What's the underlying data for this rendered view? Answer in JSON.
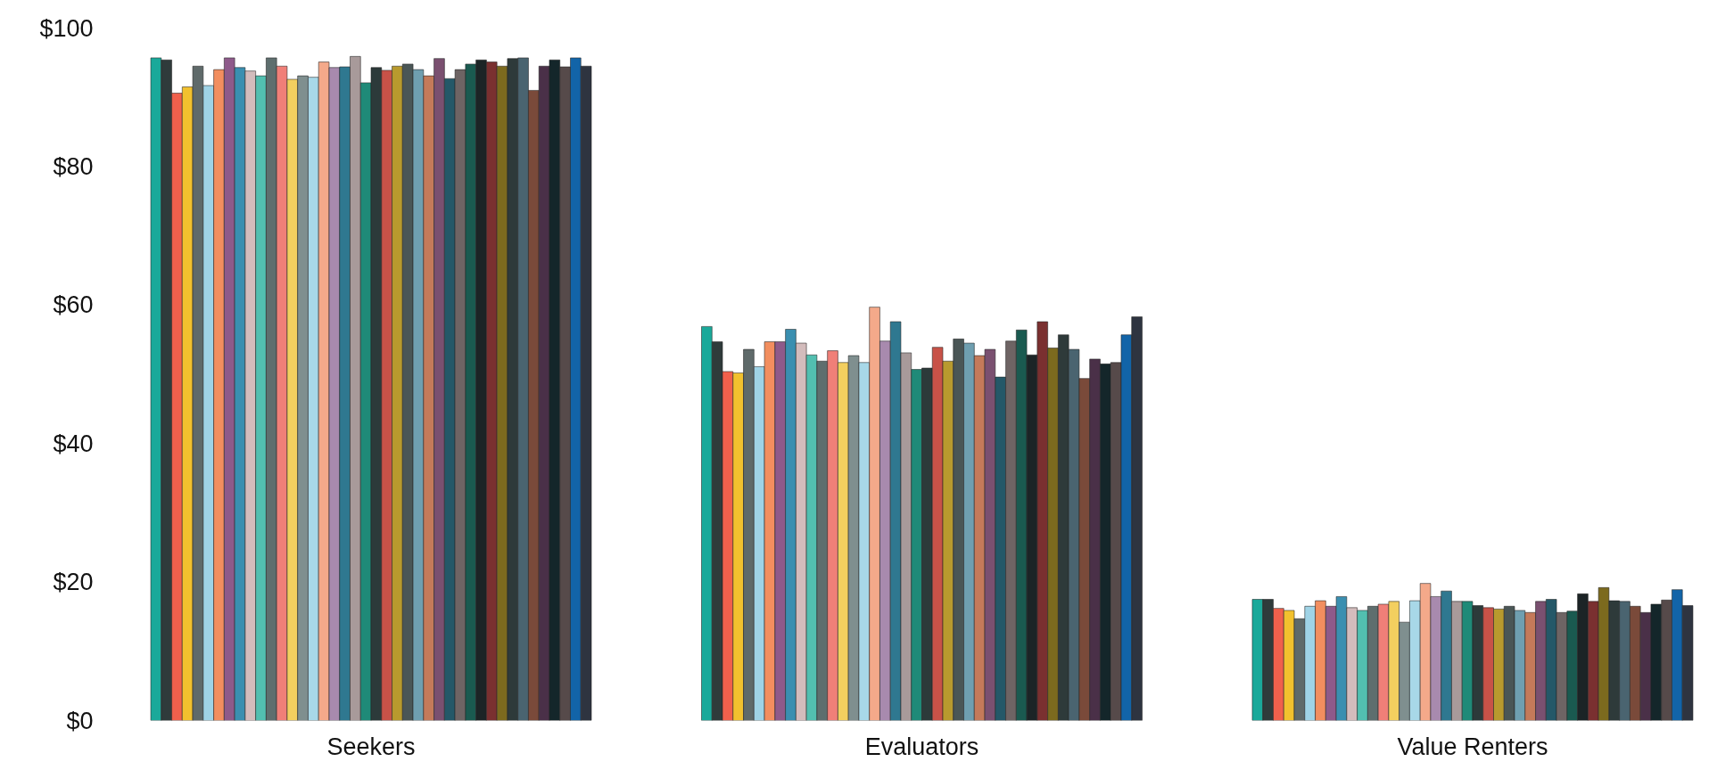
{
  "chart_data": {
    "type": "bar",
    "categories": [
      "Seekers",
      "Evaluators",
      "Value Renters"
    ],
    "ylim": [
      0,
      100
    ],
    "yticks": [
      {
        "value": 0,
        "label": "$0"
      },
      {
        "value": 20,
        "label": "$20"
      },
      {
        "value": 40,
        "label": "$40"
      },
      {
        "value": 60,
        "label": "$60"
      },
      {
        "value": 80,
        "label": "$80"
      },
      {
        "value": 100,
        "label": "$100"
      }
    ],
    "series": [
      {
        "color": "#1aa99a",
        "values": [
          95.7,
          56.9,
          17.5
        ]
      },
      {
        "color": "#2f3b3b",
        "values": [
          95.4,
          54.7,
          17.5
        ]
      },
      {
        "color": "#f0604c",
        "values": [
          90.6,
          50.4,
          16.2
        ]
      },
      {
        "color": "#f2c12e",
        "values": [
          91.5,
          50.2,
          15.9
        ]
      },
      {
        "color": "#5f6a6a",
        "values": [
          94.5,
          53.6,
          14.7
        ]
      },
      {
        "color": "#9fd3e6",
        "values": [
          91.7,
          51.1,
          16.5
        ]
      },
      {
        "color": "#f28e5f",
        "values": [
          94.0,
          54.7,
          17.3
        ]
      },
      {
        "color": "#8e5a8a",
        "values": [
          95.7,
          54.7,
          16.5
        ]
      },
      {
        "color": "#3a8fb0",
        "values": [
          94.3,
          56.5,
          17.9
        ]
      },
      {
        "color": "#d3bcbc",
        "values": [
          93.8,
          54.5,
          16.3
        ]
      },
      {
        "color": "#52bfb0",
        "values": [
          93.1,
          52.8,
          15.9
        ]
      },
      {
        "color": "#5e6e6e",
        "values": [
          95.7,
          51.9,
          16.5
        ]
      },
      {
        "color": "#f07f78",
        "values": [
          94.5,
          53.4,
          16.8
        ]
      },
      {
        "color": "#f3cf5f",
        "values": [
          92.6,
          51.7,
          17.2
        ]
      },
      {
        "color": "#7f8f8f",
        "values": [
          93.1,
          52.7,
          14.2
        ]
      },
      {
        "color": "#a8d8e8",
        "values": [
          92.9,
          51.7,
          17.3
        ]
      },
      {
        "color": "#f4a98a",
        "values": [
          95.1,
          59.7,
          19.8
        ]
      },
      {
        "color": "#a88aae",
        "values": [
          94.3,
          54.8,
          17.9
        ]
      },
      {
        "color": "#2f7890",
        "values": [
          94.4,
          57.6,
          18.7
        ]
      },
      {
        "color": "#a89a9a",
        "values": [
          95.9,
          53.1,
          17.2
        ]
      },
      {
        "color": "#1f8a78",
        "values": [
          92.1,
          50.7,
          17.2
        ]
      },
      {
        "color": "#2c3a3a",
        "values": [
          94.3,
          50.9,
          16.6
        ]
      },
      {
        "color": "#c85248",
        "values": [
          93.9,
          53.9,
          16.3
        ]
      },
      {
        "color": "#b89a2e",
        "values": [
          94.5,
          51.9,
          16.1
        ]
      },
      {
        "color": "#4a5656",
        "values": [
          94.8,
          55.1,
          16.5
        ]
      },
      {
        "color": "#6f9fb0",
        "values": [
          94.0,
          54.5,
          15.9
        ]
      },
      {
        "color": "#c47a5a",
        "values": [
          93.1,
          52.7,
          15.6
        ]
      },
      {
        "color": "#7a5070",
        "values": [
          95.6,
          53.6,
          17.2
        ]
      },
      {
        "color": "#245868",
        "values": [
          92.7,
          49.6,
          17.5
        ]
      },
      {
        "color": "#6e6464",
        "values": [
          94.0,
          54.8,
          15.6
        ]
      },
      {
        "color": "#1a5a50",
        "values": [
          94.8,
          56.4,
          15.8
        ]
      },
      {
        "color": "#1c2426",
        "values": [
          95.4,
          52.8,
          18.3
        ]
      },
      {
        "color": "#7a3030",
        "values": [
          95.1,
          57.6,
          17.2
        ]
      },
      {
        "color": "#7c6a1e",
        "values": [
          94.5,
          53.8,
          19.2
        ]
      },
      {
        "color": "#2e3a3a",
        "values": [
          95.6,
          55.7,
          17.3
        ]
      },
      {
        "color": "#4a6470",
        "values": [
          95.7,
          53.6,
          17.2
        ]
      },
      {
        "color": "#7a4a3a",
        "values": [
          91.0,
          49.4,
          16.5
        ]
      },
      {
        "color": "#4a3048",
        "values": [
          94.5,
          52.2,
          15.6
        ]
      },
      {
        "color": "#14262a",
        "values": [
          95.4,
          51.5,
          16.8
        ]
      },
      {
        "color": "#564a4a",
        "values": [
          94.4,
          51.7,
          17.4
        ]
      },
      {
        "color": "#1264a8",
        "values": [
          95.7,
          55.7,
          18.9
        ]
      },
      {
        "color": "#2e3440",
        "values": [
          94.5,
          58.3,
          16.6
        ]
      }
    ]
  }
}
